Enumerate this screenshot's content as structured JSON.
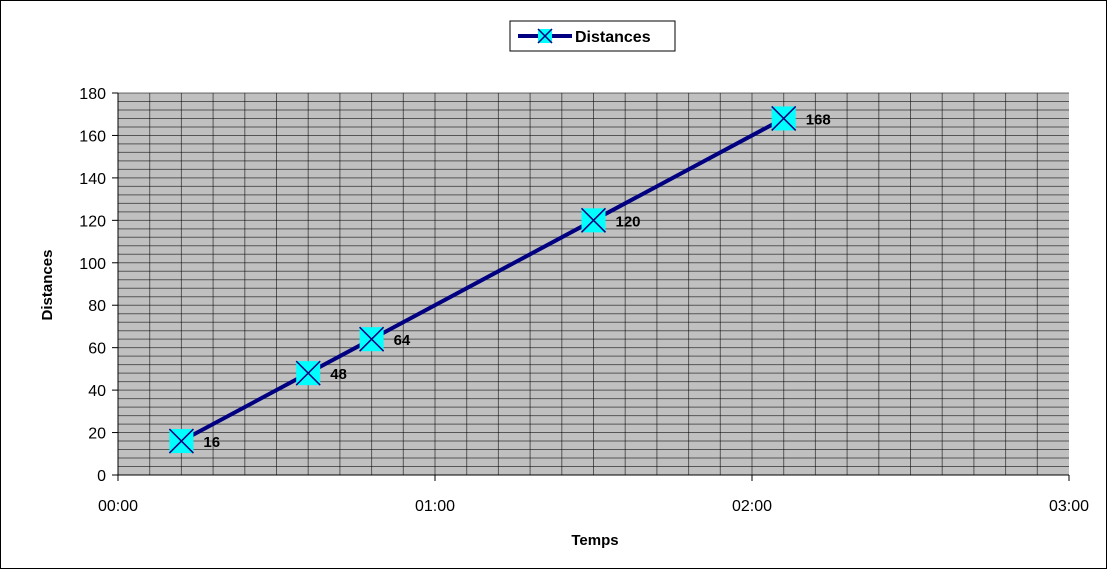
{
  "chart_data": {
    "type": "line",
    "title": "",
    "xlabel": "Temps",
    "ylabel": "Distances",
    "xlim": [
      "00:00",
      "03:00"
    ],
    "ylim": [
      0,
      180
    ],
    "x_ticks": [
      "00:00",
      "01:00",
      "02:00",
      "03:00"
    ],
    "y_ticks": [
      0,
      20,
      40,
      60,
      80,
      100,
      120,
      140,
      160,
      180
    ],
    "grid": true,
    "legend_position": "top",
    "plot_background": "#c0c0c0",
    "series": [
      {
        "name": "Distances",
        "color": "#000080",
        "marker_color": "#00ffff",
        "x": [
          "00:12",
          "00:36",
          "00:48",
          "01:30",
          "02:06"
        ],
        "values": [
          16,
          48,
          64,
          120,
          168
        ],
        "data_labels": [
          "16",
          "48",
          "64",
          "120",
          "168"
        ]
      }
    ]
  }
}
